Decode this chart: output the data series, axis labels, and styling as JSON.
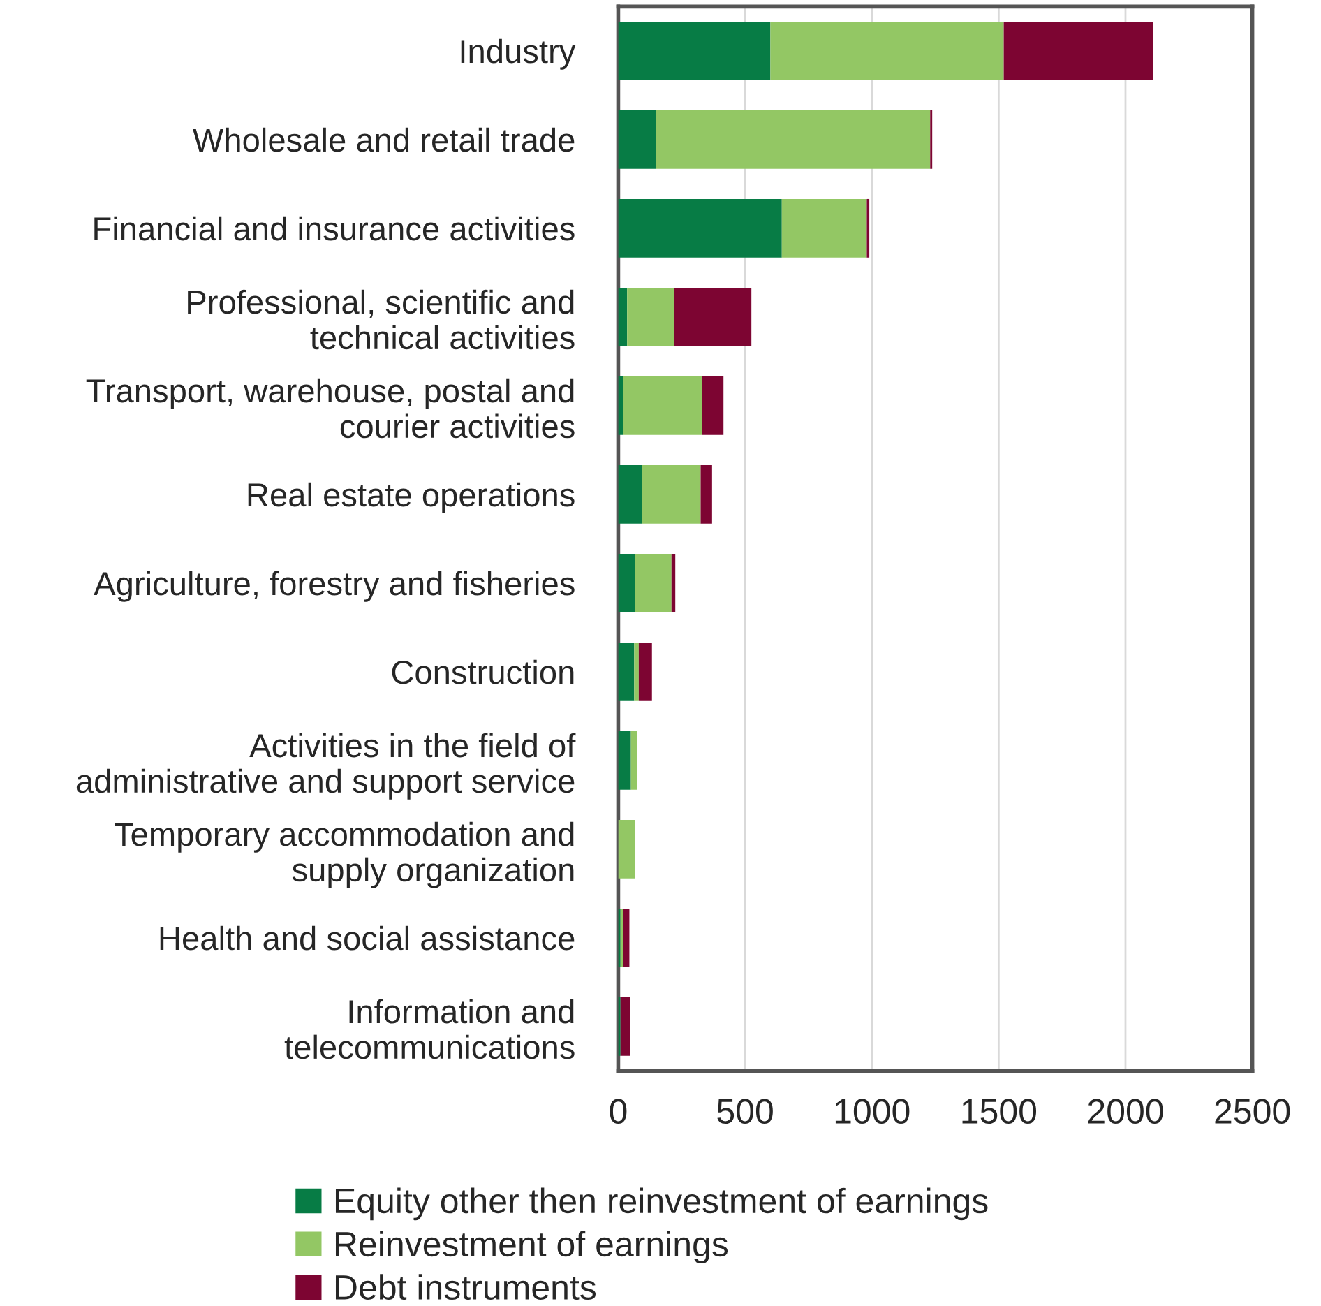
{
  "chart_data": {
    "type": "bar",
    "orientation": "horizontal",
    "stacked": true,
    "categories": [
      "Industry",
      "Wholesale and retail trade",
      "Financial and insurance activities",
      "Professional, scientific and\ntechnical activities",
      "Transport, warehouse, postal and\ncourier activities",
      "Real estate operations",
      "Agriculture, forestry and fisheries",
      "Construction",
      "Activities in the field of\nadministrative and support service",
      "Temporary accommodation and\nsupply organization",
      "Health and social assistance",
      "Information and\ntelecommunications"
    ],
    "series": [
      {
        "name": "Equity other then reinvestment of earnings",
        "color": "#077c45",
        "values": [
          600,
          150,
          645,
          35,
          20,
          95,
          65,
          63,
          50,
          0,
          9,
          9
        ]
      },
      {
        "name": "Reinvestment of earnings",
        "color": "#93c764",
        "values": [
          920,
          1080,
          335,
          185,
          310,
          230,
          145,
          18,
          24,
          65,
          9,
          0
        ]
      },
      {
        "name": "Debt instruments",
        "color": "#7d0532",
        "values": [
          590,
          8,
          10,
          305,
          85,
          45,
          15,
          52,
          0,
          0,
          26,
          37
        ]
      }
    ],
    "xlim": [
      0,
      2500
    ],
    "xticks": [
      0,
      500,
      1000,
      1500,
      2000,
      2500
    ],
    "grid": "x",
    "legend": "bottom"
  }
}
